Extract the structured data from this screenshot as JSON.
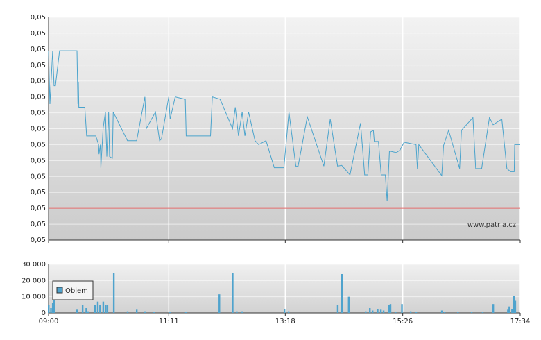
{
  "chart_data": [
    {
      "type": "line",
      "color": "#4aa3cc",
      "annotation": "www.patria.cz",
      "reference_line": {
        "value": 0.049,
        "color": "#e06a6a"
      },
      "xlim": [
        540,
        1054
      ],
      "ylim": [
        0.0486,
        0.0514
      ],
      "yticks": [
        {
          "value": 0.0486,
          "label": "0,05"
        },
        {
          "value": 0.0488,
          "label": "0,05"
        },
        {
          "value": 0.049,
          "label": "0,05"
        },
        {
          "value": 0.0492,
          "label": "0,05"
        },
        {
          "value": 0.0494,
          "label": "0,05"
        },
        {
          "value": 0.0496,
          "label": "0,05"
        },
        {
          "value": 0.0498,
          "label": "0,05"
        },
        {
          "value": 0.05,
          "label": "0,05"
        },
        {
          "value": 0.0502,
          "label": "0,05"
        },
        {
          "value": 0.0504,
          "label": "0,05"
        },
        {
          "value": 0.0506,
          "label": "0,05"
        },
        {
          "value": 0.0508,
          "label": "0,05"
        },
        {
          "value": 0.051,
          "label": "0,05"
        },
        {
          "value": 0.0512,
          "label": "0,05"
        },
        {
          "value": 0.0514,
          "label": "0,05"
        }
      ],
      "grid": true,
      "x": [
        540,
        541.5,
        544.5,
        546,
        547.5,
        552,
        571,
        572,
        572.5,
        573,
        575,
        579.5,
        581.5,
        591.5,
        594.5,
        595,
        596.5,
        597,
        599.5,
        602,
        603.5,
        605.5,
        606.5,
        609.5,
        610.5,
        626,
        636,
        645,
        646.5,
        656.5,
        661,
        663,
        671,
        672.5,
        678,
        689,
        690,
        716.5,
        718.5,
        727,
        740.5,
        743.5,
        747,
        751,
        754,
        758,
        765,
        769,
        777,
        786,
        796.5,
        802,
        809.5,
        812,
        822,
        840,
        847,
        855,
        859.5,
        868.5,
        880,
        884.5,
        888,
        891,
        894,
        895,
        899.5,
        902.5,
        907,
        909,
        911.5,
        919,
        923,
        927.5,
        940.5,
        942,
        943.5,
        968.5,
        970.5,
        976,
        988,
        990,
        1002.5,
        1005.5,
        1012,
        1020.5,
        1024.5,
        1034,
        1039.5,
        1043.5,
        1047.5,
        1048,
        1054
      ],
      "values": [
        0.05098,
        0.05031,
        0.05098,
        0.05054,
        0.05054,
        0.05098,
        0.05098,
        0.05031,
        0.05059,
        0.05027,
        0.05027,
        0.05027,
        0.04991,
        0.04991,
        0.0498,
        0.04968,
        0.0498,
        0.04951,
        0.05001,
        0.05021,
        0.04965,
        0.05021,
        0.04965,
        0.04963,
        0.05021,
        0.04985,
        0.04985,
        0.0504,
        0.05,
        0.05021,
        0.04985,
        0.04987,
        0.0504,
        0.05012,
        0.0504,
        0.05037,
        0.04991,
        0.04991,
        0.0504,
        0.05037,
        0.05,
        0.05027,
        0.04991,
        0.05021,
        0.04991,
        0.05021,
        0.04985,
        0.0498,
        0.04985,
        0.04951,
        0.04951,
        0.05021,
        0.04953,
        0.04953,
        0.05015,
        0.04953,
        0.05012,
        0.04953,
        0.04954,
        0.04942,
        0.05007,
        0.04942,
        0.04942,
        0.04996,
        0.04998,
        0.04984,
        0.04984,
        0.04942,
        0.04942,
        0.04909,
        0.04972,
        0.0497,
        0.04973,
        0.04983,
        0.0498,
        0.04949,
        0.0498,
        0.04941,
        0.04979,
        0.04998,
        0.0495,
        0.04998,
        0.05014,
        0.0495,
        0.0495,
        0.05014,
        0.05005,
        0.05012,
        0.0495,
        0.04946,
        0.04946,
        0.0498,
        0.0498
      ]
    },
    {
      "type": "bar",
      "xlim": [
        540,
        1054
      ],
      "xticks": [
        {
          "value": 540,
          "label": "09:00"
        },
        {
          "value": 671,
          "label": "11:11"
        },
        {
          "value": 798,
          "label": "13:18"
        },
        {
          "value": 926,
          "label": "15:26"
        },
        {
          "value": 1054,
          "label": "17:34"
        }
      ],
      "ylim": [
        0,
        30000
      ],
      "yticks": [
        0,
        {
          "value": 10000,
          "label": "10 000"
        },
        {
          "value": 20000,
          "label": "20 000"
        },
        {
          "value": 30000,
          "label": "30 000"
        }
      ],
      "grid": true,
      "legend": "bottom-left",
      "x": [
        540,
        542.5,
        544.5,
        546,
        571,
        577,
        581,
        583,
        590.5,
        593.5,
        596,
        599.5,
        602,
        604,
        611,
        626,
        636,
        645,
        655,
        672,
        689.5,
        726,
        740.5,
        745,
        751,
        797,
        801.5,
        855,
        859.5,
        867,
        885.5,
        890,
        893,
        898.5,
        902,
        905,
        911,
        912.5,
        918,
        925,
        934.5,
        940.5,
        968.5,
        971.5,
        986,
        1001,
        1013,
        1024.5,
        1040.5,
        1042,
        1045,
        1047,
        1048.5
      ],
      "series": [
        {
          "name": "Objem",
          "color": "#4fa3cd",
          "values": [
            5000,
            3000,
            6000,
            8000,
            2000,
            5000,
            3000,
            1000,
            5000,
            7000,
            5000,
            7000,
            5000,
            5000,
            24500,
            1000,
            2000,
            1000,
            500,
            500,
            500,
            11500,
            24500,
            1000,
            1000,
            2500,
            1000,
            5000,
            24000,
            10000,
            1000,
            3000,
            1500,
            2500,
            2000,
            1500,
            5000,
            5500,
            500,
            5500,
            1000,
            500,
            1500,
            500,
            500,
            500,
            500,
            5500,
            2000,
            4000,
            2500,
            10500,
            7500
          ]
        }
      ]
    }
  ]
}
